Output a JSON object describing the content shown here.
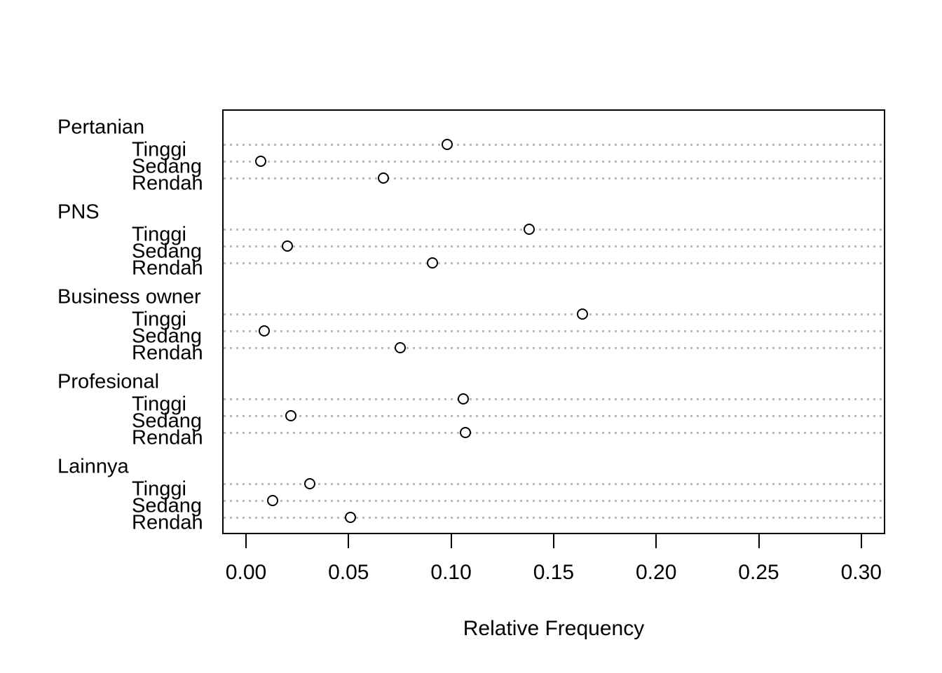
{
  "chart_data": {
    "type": "scatter",
    "variant": "grouped-dotchart",
    "title": "",
    "xlabel": "Relative Frequency",
    "ylabel": "",
    "xlim": [
      -0.012,
      0.312
    ],
    "grid": "horizontal-dotted-per-row",
    "legend": null,
    "point_marker": "open-circle",
    "x_ticks": [
      {
        "value": 0.0,
        "label": "0.00"
      },
      {
        "value": 0.05,
        "label": "0.05"
      },
      {
        "value": 0.1,
        "label": "0.10"
      },
      {
        "value": 0.15,
        "label": "0.15"
      },
      {
        "value": 0.2,
        "label": "0.20"
      },
      {
        "value": 0.25,
        "label": "0.25"
      },
      {
        "value": 0.3,
        "label": "0.30"
      }
    ],
    "groups": [
      {
        "label": "Pertanian",
        "items": [
          {
            "label": "Tinggi",
            "value": 0.098
          },
          {
            "label": "Sedang",
            "value": 0.007
          },
          {
            "label": "Rendah",
            "value": 0.067
          }
        ]
      },
      {
        "label": "PNS",
        "items": [
          {
            "label": "Tinggi",
            "value": 0.138
          },
          {
            "label": "Sedang",
            "value": 0.02
          },
          {
            "label": "Rendah",
            "value": 0.091
          }
        ]
      },
      {
        "label": "Business owner",
        "items": [
          {
            "label": "Tinggi",
            "value": 0.164
          },
          {
            "label": "Sedang",
            "value": 0.009
          },
          {
            "label": "Rendah",
            "value": 0.075
          }
        ]
      },
      {
        "label": "Profesional",
        "items": [
          {
            "label": "Tinggi",
            "value": 0.106
          },
          {
            "label": "Sedang",
            "value": 0.022
          },
          {
            "label": "Rendah",
            "value": 0.107
          }
        ]
      },
      {
        "label": "Lainnya",
        "items": [
          {
            "label": "Tinggi",
            "value": 0.031
          },
          {
            "label": "Sedang",
            "value": 0.013
          },
          {
            "label": "Rendah",
            "value": 0.051
          }
        ]
      }
    ],
    "colors": {
      "point_stroke": "#000000",
      "grid": "#b9b9b9",
      "axis": "#000000",
      "text": "#000000",
      "background": "#ffffff"
    }
  }
}
